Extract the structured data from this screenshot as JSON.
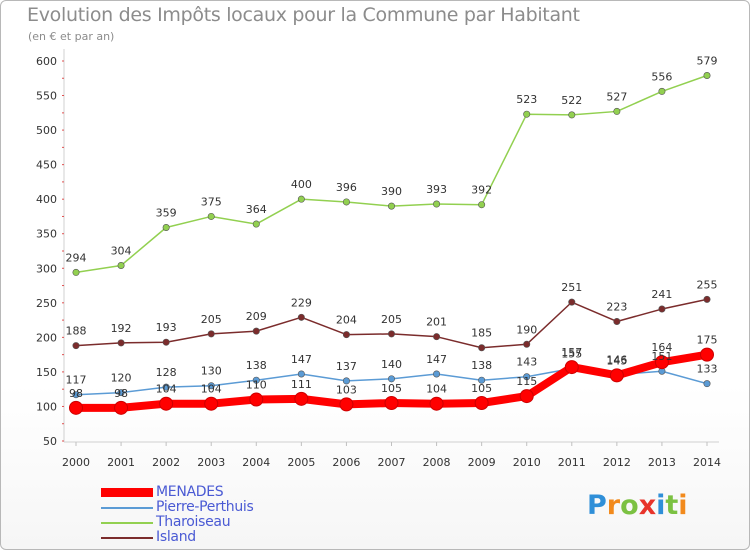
{
  "chart_data": {
    "type": "line",
    "title": "Evolution des Impôts locaux pour la Commune par Habitant",
    "subtitle": "(en € et par an)",
    "x": [
      "2000",
      "2001",
      "2002",
      "2003",
      "2004",
      "2005",
      "2006",
      "2007",
      "2008",
      "2009",
      "2010",
      "2011",
      "2012",
      "2013",
      "2014"
    ],
    "ylim": [
      50,
      600
    ],
    "yticks": [
      50,
      100,
      150,
      200,
      250,
      300,
      350,
      400,
      450,
      500,
      550,
      600
    ],
    "grid": false,
    "legend_position": "bottom-left",
    "series": [
      {
        "name": "MENADES",
        "color": "#ff0000",
        "values": [
          98,
          98,
          104,
          104,
          110,
          111,
          103,
          105,
          104,
          105,
          115,
          157,
          145,
          164,
          175
        ]
      },
      {
        "name": "Pierre-Perthuis",
        "color": "#5b9bd5",
        "values": [
          117,
          120,
          128,
          130,
          138,
          147,
          137,
          140,
          147,
          138,
          143,
          155,
          146,
          151,
          133
        ]
      },
      {
        "name": "Tharoiseau",
        "color": "#92d050",
        "values": [
          294,
          304,
          359,
          375,
          364,
          400,
          396,
          390,
          393,
          392,
          523,
          522,
          527,
          556,
          579
        ]
      },
      {
        "name": "Island",
        "color": "#7b2c2c",
        "values": [
          188,
          192,
          193,
          205,
          209,
          229,
          204,
          205,
          201,
          185,
          190,
          251,
          223,
          241,
          255
        ]
      }
    ]
  },
  "logo": {
    "letters": [
      "P",
      "r",
      "o",
      "x",
      "i",
      "t",
      "i"
    ],
    "colors": [
      "#2f8fd8",
      "#f28a1c",
      "#7bc142",
      "#e8332a",
      "#2f8fd8",
      "#7bc142",
      "#f28a1c"
    ]
  }
}
